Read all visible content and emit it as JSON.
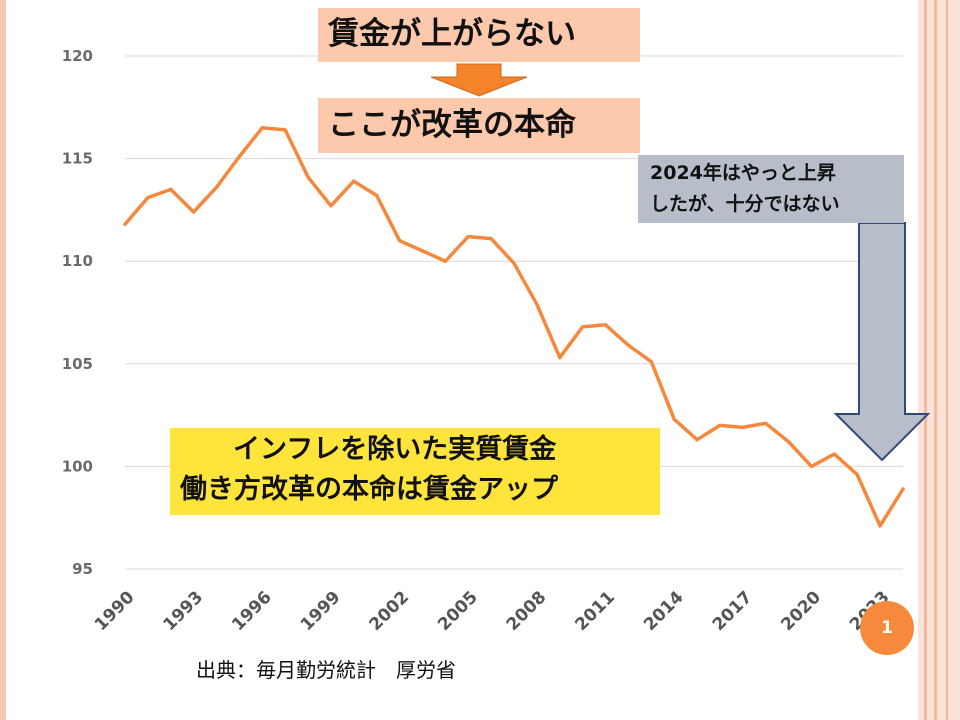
{
  "title_top": "賃金が上がらない",
  "title_bottom": "ここが改革の本命",
  "note": {
    "line1": "2024年はやっと上昇",
    "line2": "したが、十分ではない"
  },
  "caption": {
    "line1": "インフレを除いた実質賃金",
    "line2": "働き方改革の本命は賃金アップ"
  },
  "source": "出典：毎月勤労統計　厚労省",
  "page_number": "1",
  "colors": {
    "line": "#f5883c",
    "title_box": "#fdc9ad",
    "note_box": "#b7bec9",
    "caption_box": "#ffe53b",
    "arrow_orange": "#f5832a",
    "arrow_gray": "#b7bec9",
    "badge": "#f7893c"
  },
  "chart_data": {
    "type": "line",
    "x": [
      1990,
      1991,
      1992,
      1993,
      1994,
      1995,
      1996,
      1997,
      1998,
      1999,
      2000,
      2001,
      2002,
      2003,
      2004,
      2005,
      2006,
      2007,
      2008,
      2009,
      2010,
      2011,
      2012,
      2013,
      2014,
      2015,
      2016,
      2017,
      2018,
      2019,
      2020,
      2021,
      2022,
      2023,
      2024
    ],
    "values": [
      111.8,
      113.1,
      113.5,
      112.4,
      113.6,
      115.1,
      116.5,
      116.4,
      114.1,
      112.7,
      113.9,
      113.2,
      111.0,
      110.5,
      110.0,
      111.2,
      111.1,
      109.9,
      107.9,
      105.3,
      106.8,
      106.9,
      105.9,
      105.1,
      102.3,
      101.3,
      102.0,
      101.9,
      102.1,
      101.2,
      100.0,
      100.6,
      99.6,
      97.1,
      98.9
    ],
    "xticks": [
      "1990",
      "1993",
      "1996",
      "1999",
      "2002",
      "2005",
      "2008",
      "2011",
      "2014",
      "2017",
      "2020",
      "2023"
    ],
    "yticks": [
      "95",
      "100",
      "105",
      "110",
      "115",
      "120"
    ],
    "ylim": [
      95,
      120
    ],
    "xlim": [
      1990,
      2024
    ],
    "grid": true
  }
}
